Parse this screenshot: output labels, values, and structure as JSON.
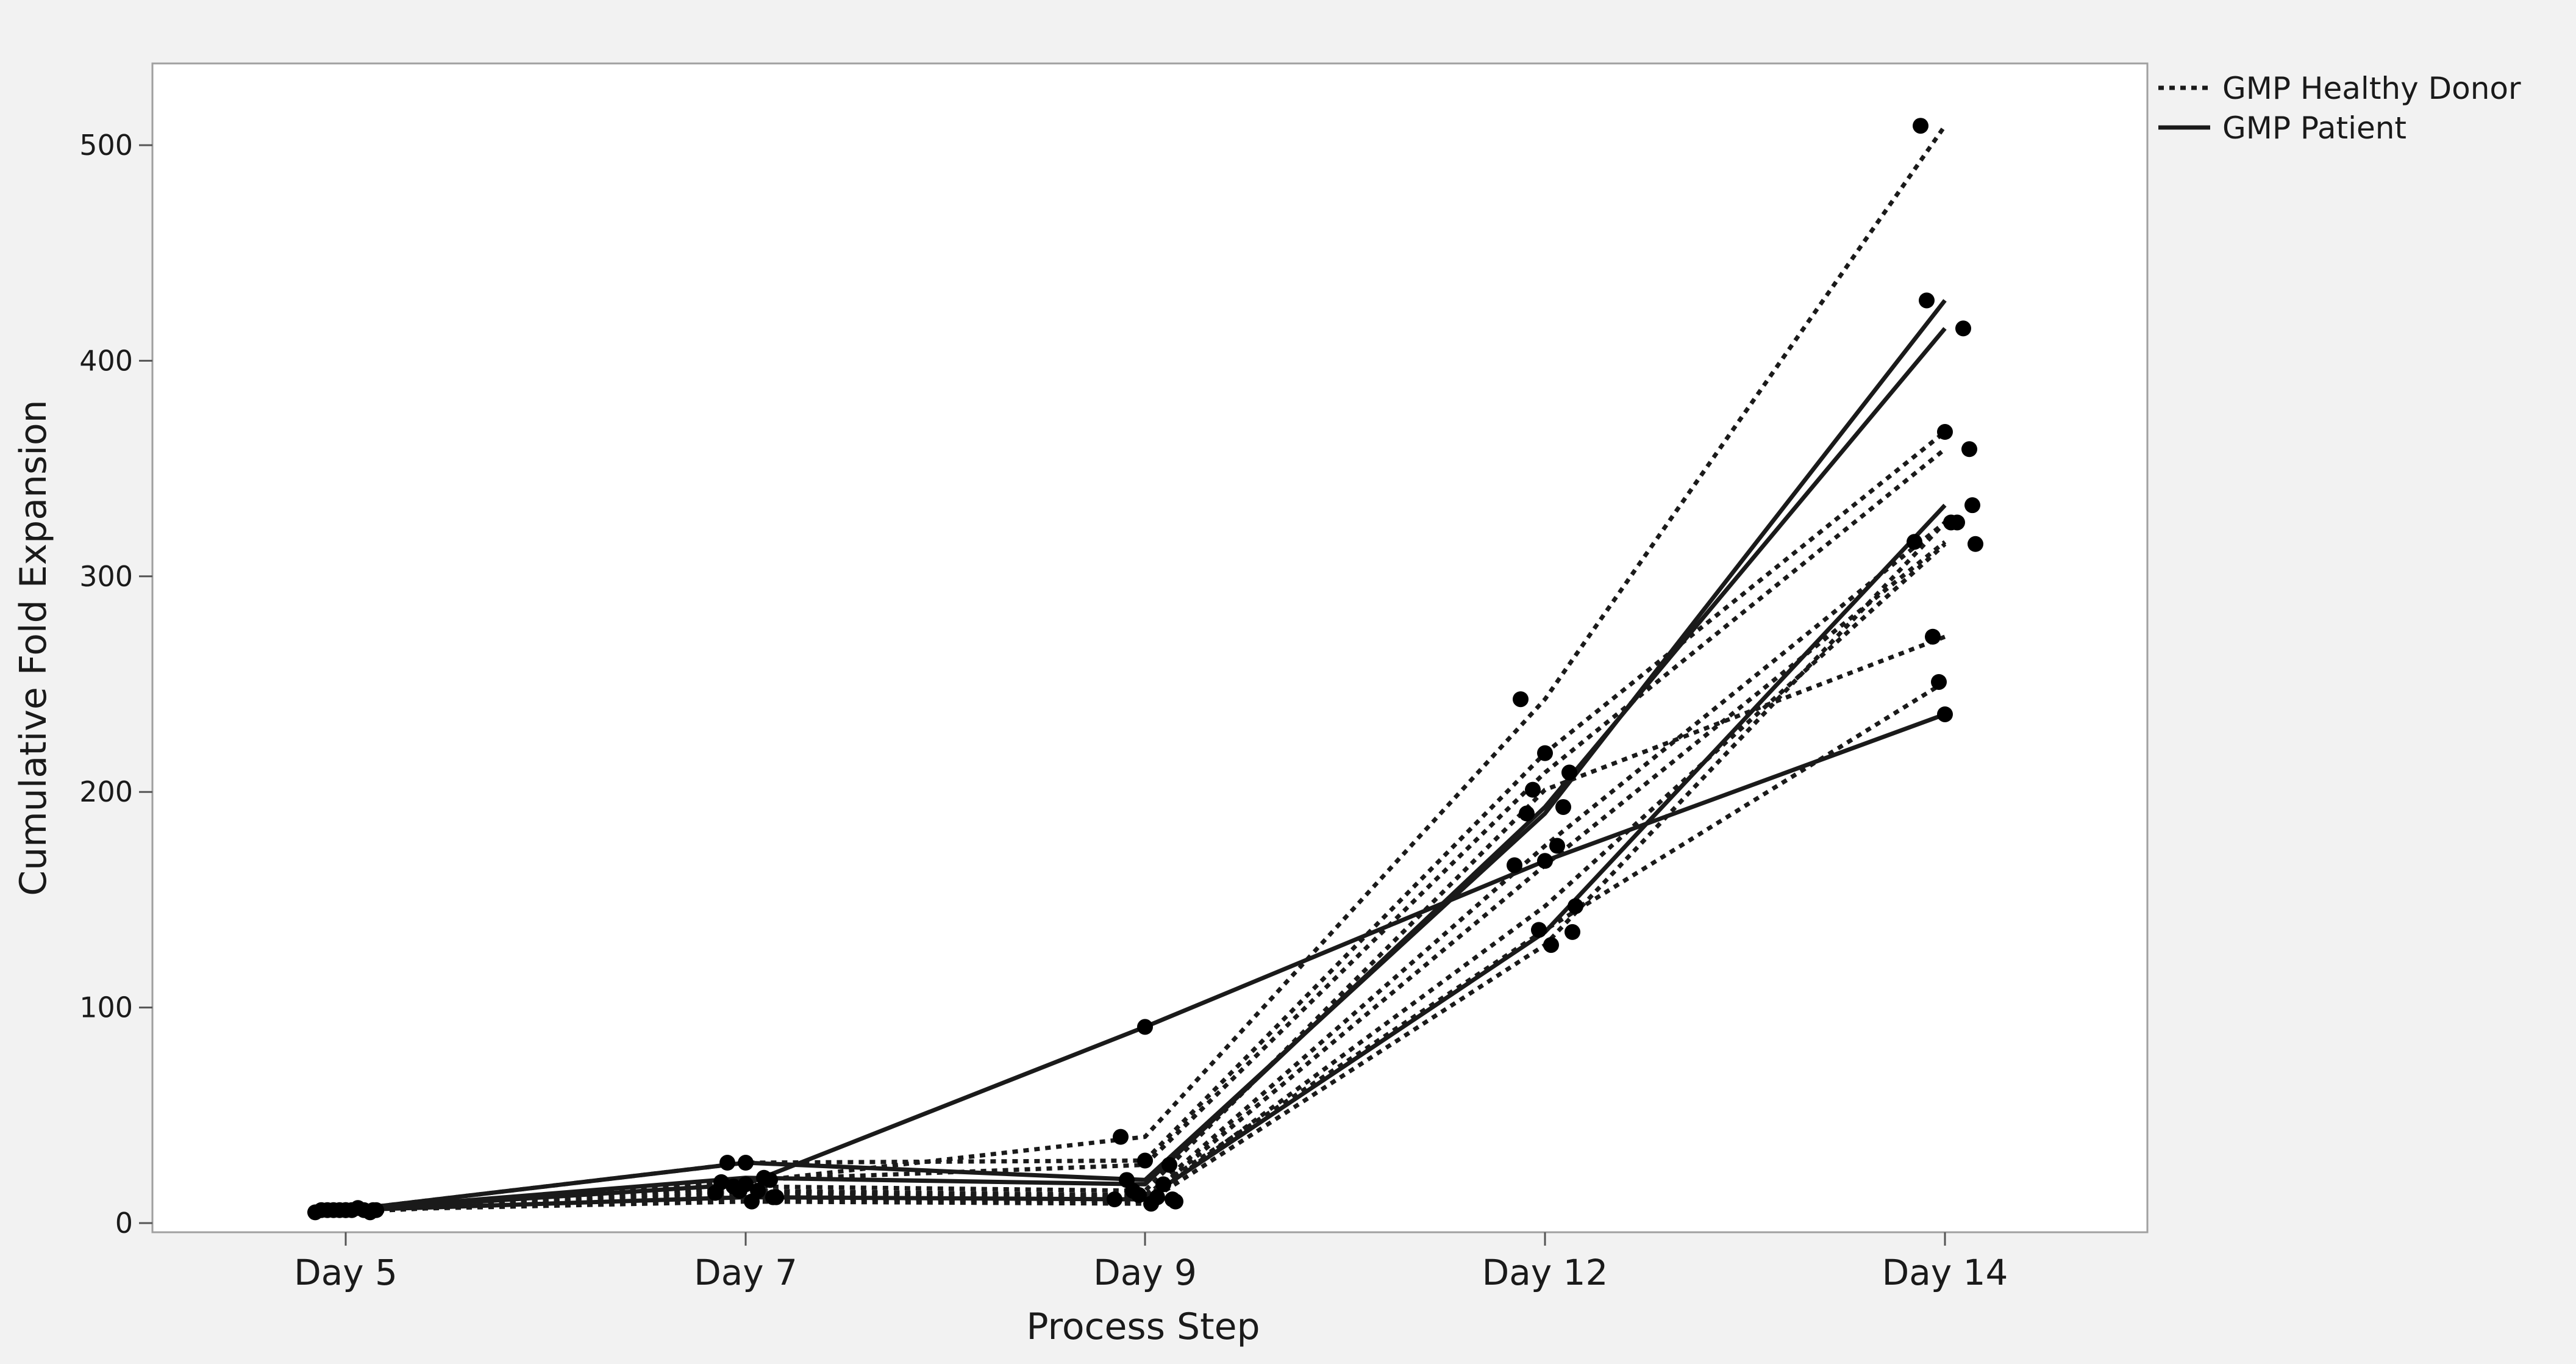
{
  "chart_data": {
    "type": "line",
    "title": "",
    "xlabel": "Process Step",
    "ylabel": "Cumulative Fold Expansion",
    "categories": [
      "Day 5",
      "Day 7",
      "Day 9",
      "Day 12",
      "Day 14"
    ],
    "ylim": [
      0,
      540
    ],
    "yticks": [
      0,
      100,
      200,
      300,
      400,
      500
    ],
    "grid": false,
    "legend": {
      "placement": "top-right-outside",
      "entries": [
        {
          "label": "GMP Healthy Donor",
          "style": "dotted"
        },
        {
          "label": "GMP Patient",
          "style": "solid"
        }
      ]
    },
    "series": [
      {
        "group": "GMP Healthy Donor",
        "values": [
          6,
          19,
          40,
          243,
          509
        ]
      },
      {
        "group": "GMP Healthy Donor",
        "values": [
          6,
          28,
          29,
          218,
          367
        ]
      },
      {
        "group": "GMP Healthy Donor",
        "values": [
          5,
          20,
          27,
          209,
          359
        ]
      },
      {
        "group": "GMP Healthy Donor",
        "values": [
          6,
          17,
          15,
          201,
          272
        ]
      },
      {
        "group": "GMP Healthy Donor",
        "values": [
          7,
          15,
          12,
          175,
          325
        ]
      },
      {
        "group": "GMP Healthy Donor",
        "values": [
          5,
          14,
          11,
          166,
          316
        ]
      },
      {
        "group": "GMP Healthy Donor",
        "values": [
          6,
          12,
          10,
          147,
          315
        ]
      },
      {
        "group": "GMP Healthy Donor",
        "values": [
          6,
          15,
          13,
          136,
          251
        ]
      },
      {
        "group": "GMP Healthy Donor",
        "values": [
          6,
          10,
          9,
          129,
          325
        ]
      },
      {
        "group": "GMP Patient",
        "values": [
          6,
          28,
          20,
          190,
          428
        ]
      },
      {
        "group": "GMP Patient",
        "values": [
          6,
          21,
          18,
          193,
          415
        ]
      },
      {
        "group": "GMP Patient",
        "values": [
          6,
          18,
          91,
          168,
          236
        ]
      },
      {
        "group": "GMP Patient",
        "values": [
          6,
          12,
          11,
          135,
          333
        ]
      }
    ]
  },
  "colors": {
    "line": "#1a1a1a",
    "frame": "#a0a0a0",
    "background": "#f2f2f2",
    "plot_background": "#ffffff"
  }
}
